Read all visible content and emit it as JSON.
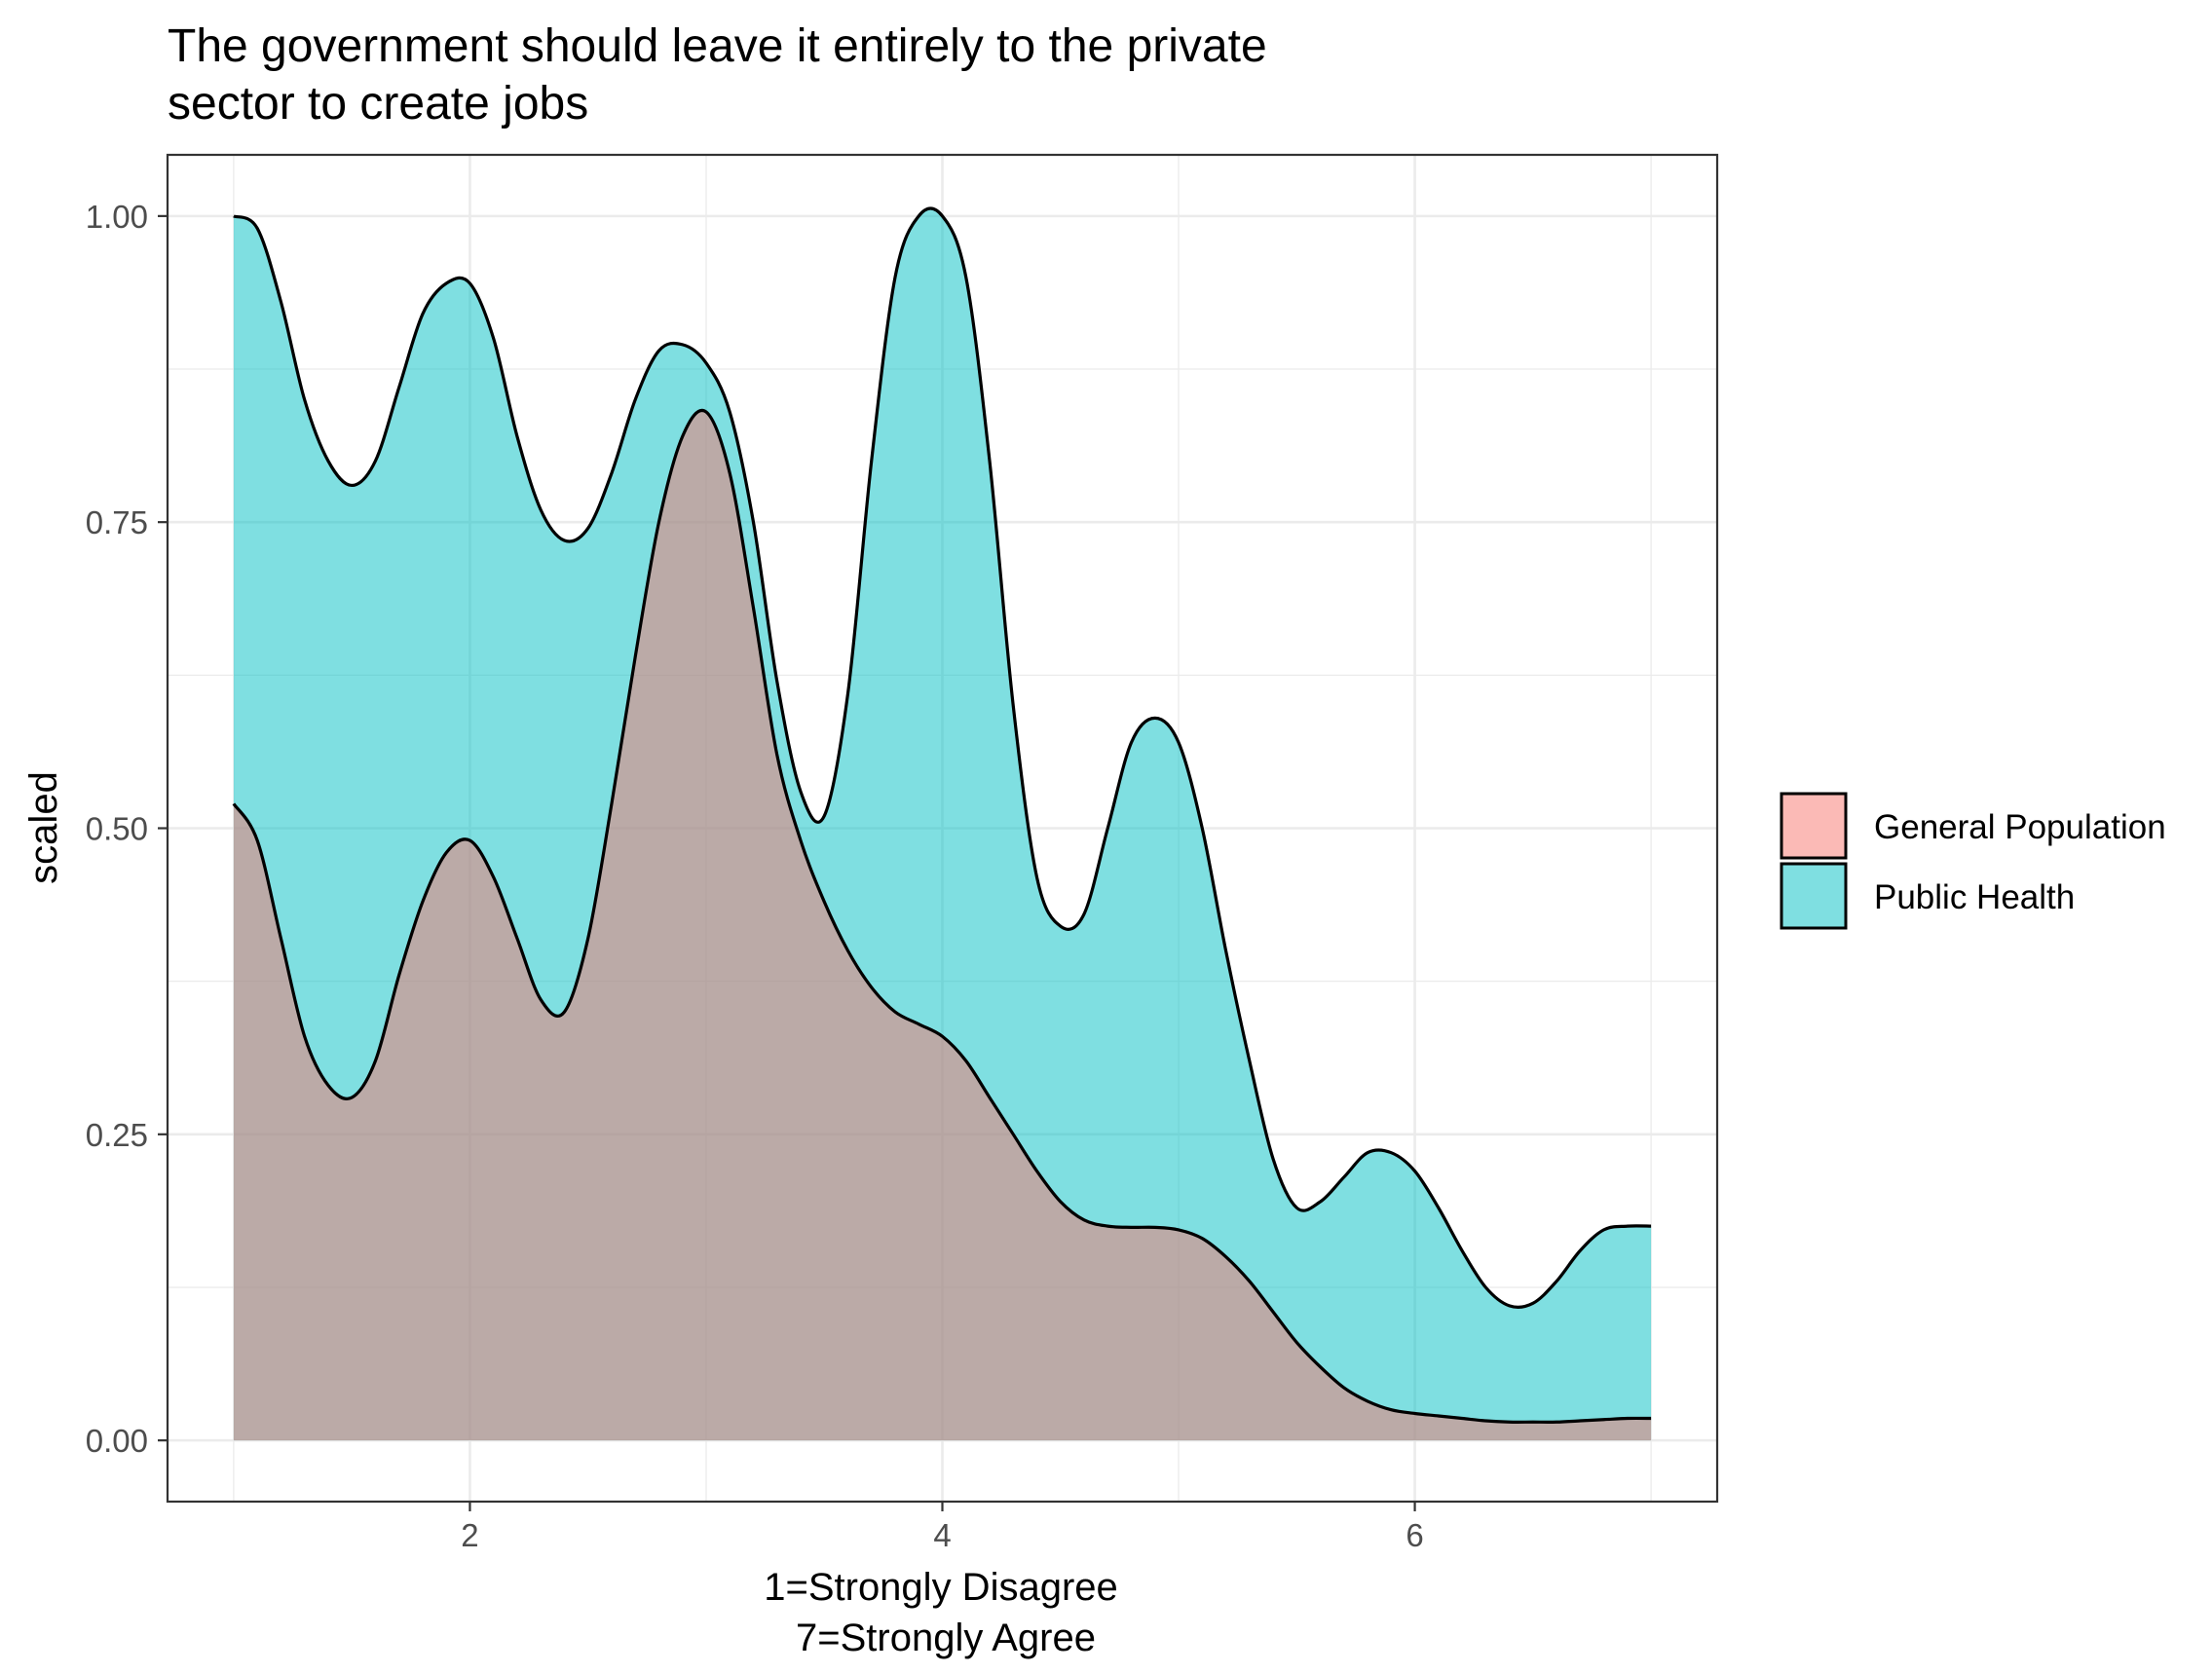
{
  "chart_data": {
    "type": "area",
    "title_lines": [
      "The government should leave it entirely to the private",
      "sector to create jobs"
    ],
    "xlabel_lines": [
      "1=Strongly Disagree",
      "7=Strongly Agree"
    ],
    "ylabel": "scaled",
    "xlim": [
      0.72,
      7.28
    ],
    "ylim": [
      -0.05,
      1.05
    ],
    "x_ticks": [
      2,
      4,
      6
    ],
    "x_tick_labels": [
      "2",
      "4",
      "6"
    ],
    "x_minor_ticks": [
      1,
      3,
      5,
      7
    ],
    "y_ticks": [
      0,
      0.25,
      0.5,
      0.75,
      1
    ],
    "y_tick_labels": [
      "0.00",
      "0.25",
      "0.50",
      "0.75",
      "1.00"
    ],
    "y_minor_ticks": [
      0.125,
      0.375,
      0.625,
      0.875
    ],
    "grid": true,
    "legend_position": "right",
    "legend": [
      {
        "name": "General Population",
        "color": "#F8766D"
      },
      {
        "name": "Public Health",
        "color": "#00BFC4"
      }
    ],
    "series": [
      {
        "name": "General Population",
        "color": "#F8766D",
        "x": [
          1.0,
          1.1,
          1.2,
          1.3,
          1.4,
          1.5,
          1.6,
          1.7,
          1.8,
          1.9,
          2.0,
          2.1,
          2.2,
          2.3,
          2.4,
          2.5,
          2.6,
          2.7,
          2.8,
          2.9,
          3.0,
          3.1,
          3.2,
          3.3,
          3.4,
          3.5,
          3.6,
          3.7,
          3.8,
          3.9,
          4.0,
          4.1,
          4.2,
          4.3,
          4.4,
          4.5,
          4.6,
          4.7,
          4.8,
          4.9,
          5.0,
          5.1,
          5.2,
          5.3,
          5.4,
          5.5,
          5.6,
          5.7,
          5.8,
          5.9,
          6.0,
          6.1,
          6.2,
          6.3,
          6.4,
          6.5,
          6.6,
          6.7,
          6.8,
          6.9,
          7.0
        ],
        "values": [
          0.52,
          0.49,
          0.41,
          0.33,
          0.29,
          0.28,
          0.31,
          0.38,
          0.44,
          0.48,
          0.49,
          0.46,
          0.41,
          0.36,
          0.35,
          0.41,
          0.52,
          0.64,
          0.75,
          0.82,
          0.84,
          0.79,
          0.68,
          0.56,
          0.49,
          0.44,
          0.4,
          0.37,
          0.35,
          0.34,
          0.33,
          0.31,
          0.28,
          0.25,
          0.22,
          0.195,
          0.18,
          0.175,
          0.174,
          0.174,
          0.172,
          0.165,
          0.15,
          0.13,
          0.105,
          0.08,
          0.06,
          0.043,
          0.032,
          0.025,
          0.022,
          0.02,
          0.018,
          0.016,
          0.015,
          0.015,
          0.015,
          0.016,
          0.017,
          0.018,
          0.018
        ]
      },
      {
        "name": "Public Health",
        "color": "#00BFC4",
        "x": [
          1.0,
          1.1,
          1.2,
          1.3,
          1.4,
          1.5,
          1.6,
          1.7,
          1.8,
          1.9,
          2.0,
          2.1,
          2.2,
          2.3,
          2.4,
          2.5,
          2.6,
          2.7,
          2.8,
          2.9,
          3.0,
          3.1,
          3.2,
          3.3,
          3.4,
          3.5,
          3.6,
          3.7,
          3.8,
          3.9,
          4.0,
          4.1,
          4.2,
          4.3,
          4.4,
          4.5,
          4.6,
          4.7,
          4.8,
          4.9,
          5.0,
          5.1,
          5.2,
          5.3,
          5.4,
          5.5,
          5.6,
          5.7,
          5.8,
          5.9,
          6.0,
          6.1,
          6.2,
          6.3,
          6.4,
          6.5,
          6.6,
          6.7,
          6.8,
          6.9,
          7.0
        ],
        "values": [
          1.0,
          0.99,
          0.93,
          0.85,
          0.8,
          0.78,
          0.8,
          0.86,
          0.92,
          0.945,
          0.945,
          0.9,
          0.82,
          0.76,
          0.735,
          0.745,
          0.79,
          0.85,
          0.89,
          0.895,
          0.88,
          0.84,
          0.75,
          0.62,
          0.53,
          0.51,
          0.61,
          0.8,
          0.95,
          1.0,
          1.0,
          0.95,
          0.8,
          0.6,
          0.46,
          0.42,
          0.43,
          0.5,
          0.57,
          0.59,
          0.57,
          0.5,
          0.4,
          0.31,
          0.23,
          0.19,
          0.195,
          0.215,
          0.235,
          0.235,
          0.22,
          0.19,
          0.155,
          0.125,
          0.11,
          0.112,
          0.13,
          0.155,
          0.172,
          0.175,
          0.175
        ]
      }
    ]
  }
}
